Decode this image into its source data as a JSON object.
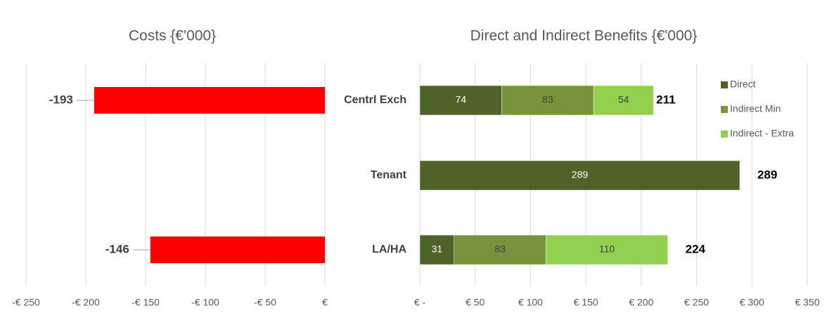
{
  "chart_data": [
    {
      "type": "hbar",
      "title": "Costs {€'000}",
      "values": [
        -193,
        null,
        -146
      ],
      "color": "#ff0000",
      "xlim": [
        -250,
        0
      ],
      "xticks": [
        {
          "value": -250,
          "label": "-€ 250"
        },
        {
          "value": -200,
          "label": "-€ 200"
        },
        {
          "value": -150,
          "label": "-€ 150"
        },
        {
          "value": -100,
          "label": "-€ 100"
        },
        {
          "value": -50,
          "label": "-€ 50"
        },
        {
          "value": 0,
          "label": "€"
        }
      ],
      "grid": true
    },
    {
      "type": "stacked-hbar",
      "title": "Direct and Indirect Benefits {€'000}",
      "categories": [
        "Centrl Exch",
        "Tenant",
        "LA/HA"
      ],
      "series": [
        {
          "name": "Direct",
          "color": "#4f6228",
          "values": [
            74,
            289,
            31
          ]
        },
        {
          "name": "Indirect Min",
          "color": "#77933c",
          "values": [
            83,
            null,
            83
          ]
        },
        {
          "name": "Indirect - Extra",
          "color": "#92d050",
          "values": [
            54,
            null,
            110
          ]
        }
      ],
      "totals": [
        211,
        289,
        224
      ],
      "xlim": [
        0,
        350
      ],
      "xticks": [
        {
          "value": 0,
          "label": "€ -"
        },
        {
          "value": 50,
          "label": "€ 50"
        },
        {
          "value": 100,
          "label": "€ 100"
        },
        {
          "value": 150,
          "label": "€ 150"
        },
        {
          "value": 200,
          "label": "€ 200"
        },
        {
          "value": 250,
          "label": "€ 250"
        },
        {
          "value": 300,
          "label": "€ 300"
        },
        {
          "value": 350,
          "label": "€ 350"
        }
      ],
      "grid": true,
      "legend": "top-right"
    }
  ]
}
